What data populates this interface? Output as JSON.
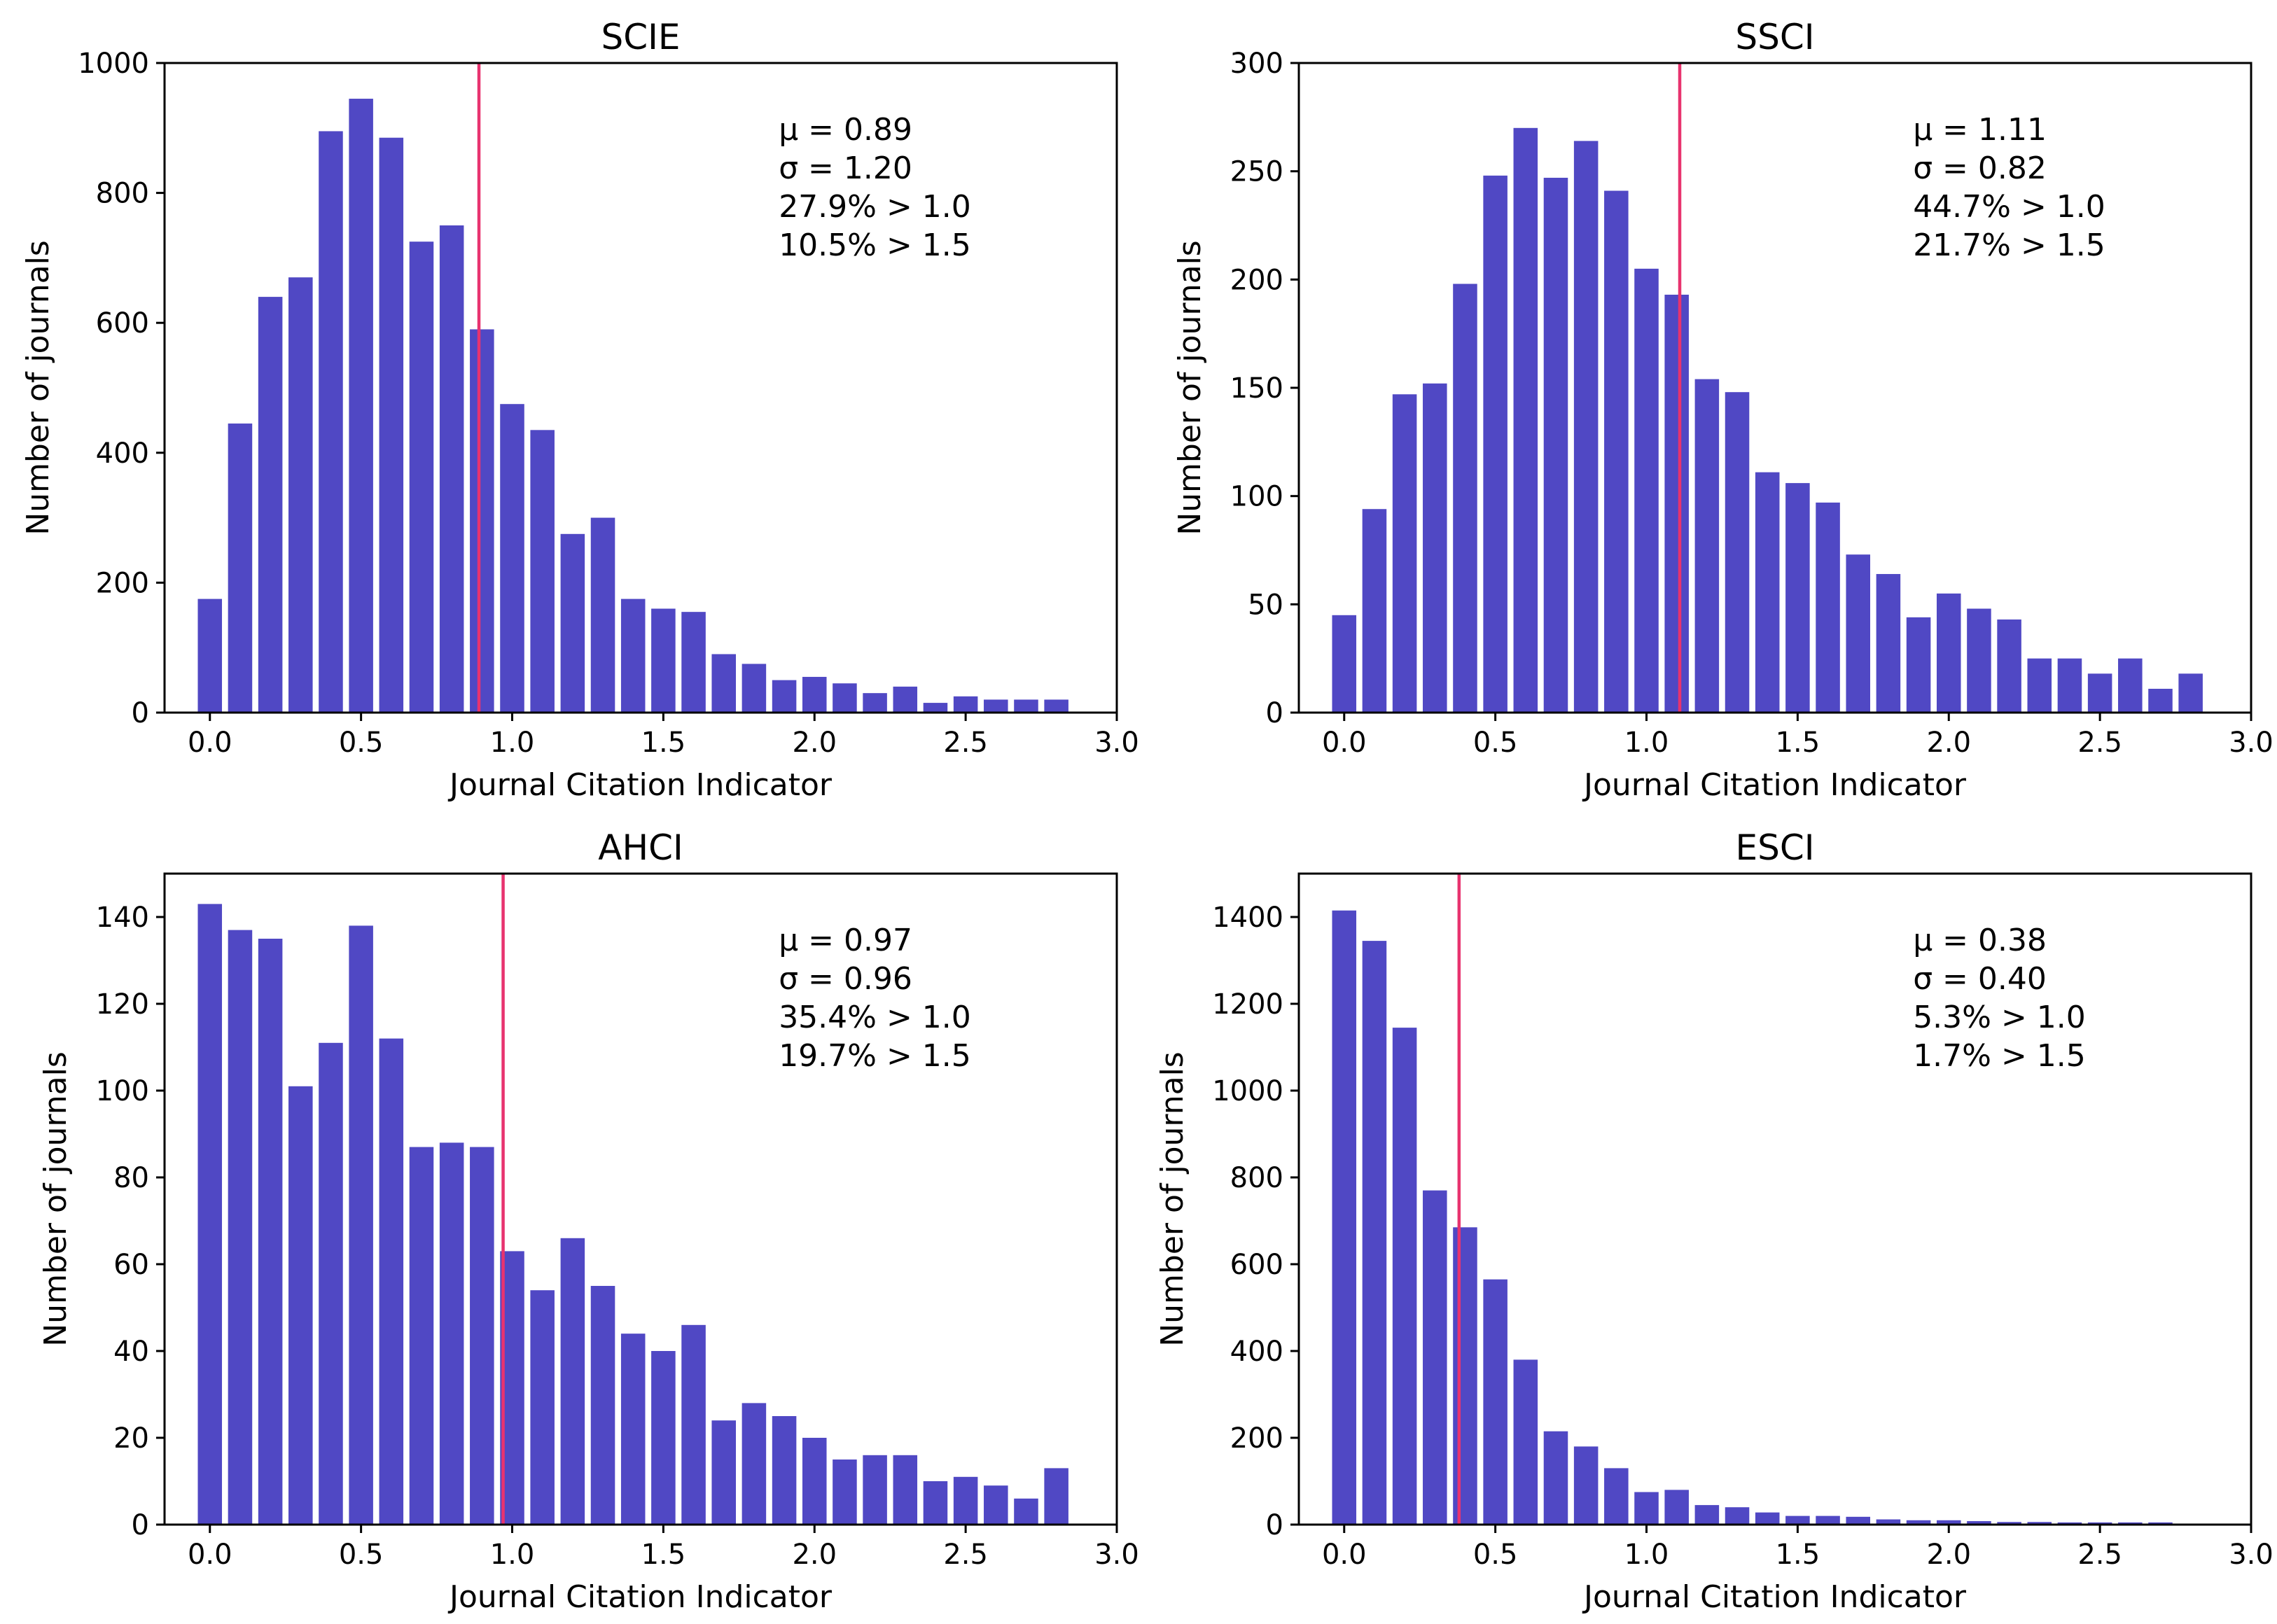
{
  "figure": {
    "bar_color": "#5048c4",
    "mean_line_color": "#e8336f"
  },
  "chart_data": [
    {
      "type": "bar",
      "title": "SCIE",
      "xlabel": "Journal Citation Indicator",
      "ylabel": "Number of journals",
      "xlim": [
        -0.15,
        3.0
      ],
      "ylim": [
        0,
        1000
      ],
      "xticks": [
        "0.0",
        "0.5",
        "1.0",
        "1.5",
        "2.0",
        "2.5",
        "3.0"
      ],
      "yticks": [
        "0",
        "200",
        "400",
        "600",
        "800",
        "1000"
      ],
      "bin_width": 0.1,
      "bins": [
        0.0,
        0.1,
        0.2,
        0.3,
        0.4,
        0.5,
        0.6,
        0.7,
        0.8,
        0.9,
        1.0,
        1.1,
        1.2,
        1.3,
        1.4,
        1.5,
        1.6,
        1.7,
        1.8,
        1.9,
        2.0,
        2.1,
        2.2,
        2.3,
        2.4,
        2.5,
        2.6,
        2.7,
        2.8
      ],
      "values": [
        175,
        445,
        640,
        670,
        895,
        945,
        885,
        725,
        750,
        590,
        475,
        435,
        275,
        300,
        175,
        160,
        155,
        90,
        75,
        50,
        55,
        45,
        30,
        40,
        15,
        25,
        20,
        20,
        20
      ],
      "mean": 0.89,
      "stats": [
        "μ = 0.89",
        "σ = 1.20",
        "27.9% > 1.0",
        "10.5% > 1.5"
      ]
    },
    {
      "type": "bar",
      "title": "SSCI",
      "xlabel": "Journal Citation Indicator",
      "ylabel": "Number of journals",
      "xlim": [
        -0.15,
        3.0
      ],
      "ylim": [
        0,
        300
      ],
      "xticks": [
        "0.0",
        "0.5",
        "1.0",
        "1.5",
        "2.0",
        "2.5",
        "3.0"
      ],
      "yticks": [
        "0",
        "50",
        "100",
        "150",
        "200",
        "250",
        "300"
      ],
      "bin_width": 0.1,
      "bins": [
        0.0,
        0.1,
        0.2,
        0.3,
        0.4,
        0.5,
        0.6,
        0.7,
        0.8,
        0.9,
        1.0,
        1.1,
        1.2,
        1.3,
        1.4,
        1.5,
        1.6,
        1.7,
        1.8,
        1.9,
        2.0,
        2.1,
        2.2,
        2.3,
        2.4,
        2.5,
        2.6,
        2.7,
        2.8
      ],
      "values": [
        45,
        94,
        147,
        152,
        198,
        248,
        270,
        247,
        264,
        241,
        205,
        193,
        154,
        148,
        111,
        106,
        97,
        73,
        64,
        44,
        55,
        48,
        43,
        25,
        25,
        18,
        25,
        11,
        18
      ],
      "mean": 1.11,
      "stats": [
        "μ = 1.11",
        "σ = 0.82",
        "44.7% > 1.0",
        "21.7% > 1.5"
      ]
    },
    {
      "type": "bar",
      "title": "AHCI",
      "xlabel": "Journal Citation Indicator",
      "ylabel": "Number of journals",
      "xlim": [
        -0.15,
        3.0
      ],
      "ylim": [
        0,
        150
      ],
      "xticks": [
        "0.0",
        "0.5",
        "1.0",
        "1.5",
        "2.0",
        "2.5",
        "3.0"
      ],
      "yticks": [
        "0",
        "20",
        "40",
        "60",
        "80",
        "100",
        "120",
        "140"
      ],
      "bin_width": 0.1,
      "bins": [
        0.0,
        0.1,
        0.2,
        0.3,
        0.4,
        0.5,
        0.6,
        0.7,
        0.8,
        0.9,
        1.0,
        1.1,
        1.2,
        1.3,
        1.4,
        1.5,
        1.6,
        1.7,
        1.8,
        1.9,
        2.0,
        2.1,
        2.2,
        2.3,
        2.4,
        2.5,
        2.6,
        2.7,
        2.8
      ],
      "values": [
        143,
        137,
        135,
        101,
        111,
        138,
        112,
        87,
        88,
        87,
        63,
        54,
        66,
        55,
        44,
        40,
        46,
        24,
        28,
        25,
        20,
        15,
        16,
        16,
        10,
        11,
        9,
        6,
        13
      ],
      "mean": 0.97,
      "stats": [
        "μ = 0.97",
        "σ = 0.96",
        "35.4% > 1.0",
        "19.7% > 1.5"
      ]
    },
    {
      "type": "bar",
      "title": "ESCI",
      "xlabel": "Journal Citation Indicator",
      "ylabel": "Number of journals",
      "xlim": [
        -0.15,
        3.0
      ],
      "ylim": [
        0,
        1500
      ],
      "xticks": [
        "0.0",
        "0.5",
        "1.0",
        "1.5",
        "2.0",
        "2.5",
        "3.0"
      ],
      "yticks": [
        "0",
        "200",
        "400",
        "600",
        "800",
        "1000",
        "1200",
        "1400"
      ],
      "bin_width": 0.1,
      "bins": [
        0.0,
        0.1,
        0.2,
        0.3,
        0.4,
        0.5,
        0.6,
        0.7,
        0.8,
        0.9,
        1.0,
        1.1,
        1.2,
        1.3,
        1.4,
        1.5,
        1.6,
        1.7,
        1.8,
        1.9,
        2.0,
        2.1,
        2.2,
        2.3,
        2.4,
        2.5,
        2.6,
        2.7
      ],
      "values": [
        1415,
        1345,
        1145,
        770,
        685,
        565,
        380,
        215,
        180,
        130,
        75,
        80,
        45,
        40,
        28,
        20,
        20,
        18,
        12,
        10,
        10,
        8,
        6,
        6,
        5,
        5,
        5,
        5
      ],
      "mean": 0.38,
      "stats": [
        "μ = 0.38",
        "σ = 0.40",
        "5.3% > 1.0",
        "1.7% > 1.5"
      ]
    }
  ]
}
